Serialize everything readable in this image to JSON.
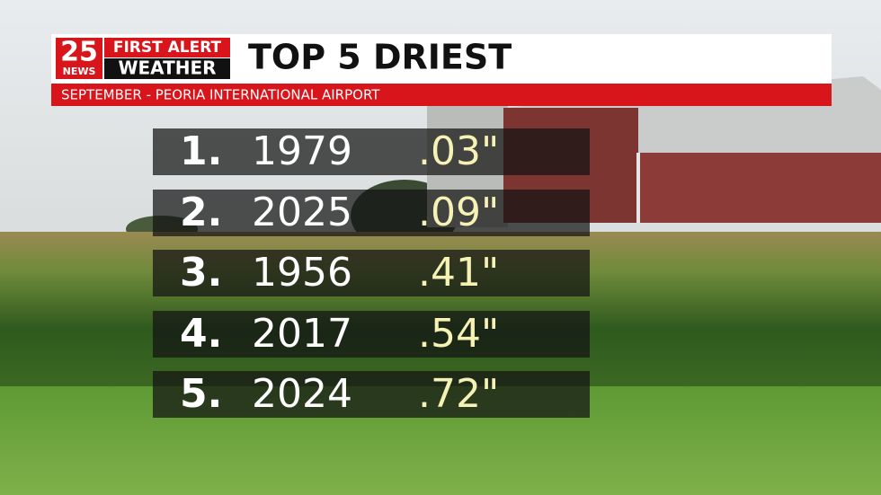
{
  "logo": {
    "number": "25",
    "network": "NEWS",
    "line1": "FIRST ALERT",
    "line2": "WEATHER"
  },
  "header": {
    "title": "TOP 5 DRIEST",
    "subtitle": "SEPTEMBER - PEORIA INTERNATIONAL AIRPORT"
  },
  "table": {
    "rows": [
      [
        "1.",
        "1979",
        ".03\""
      ],
      [
        "2.",
        "2025",
        ".09\""
      ],
      [
        "3.",
        "1956",
        ".41\""
      ],
      [
        "4.",
        "2017",
        ".54\""
      ],
      [
        "5.",
        "2024",
        ".72\""
      ]
    ]
  }
}
